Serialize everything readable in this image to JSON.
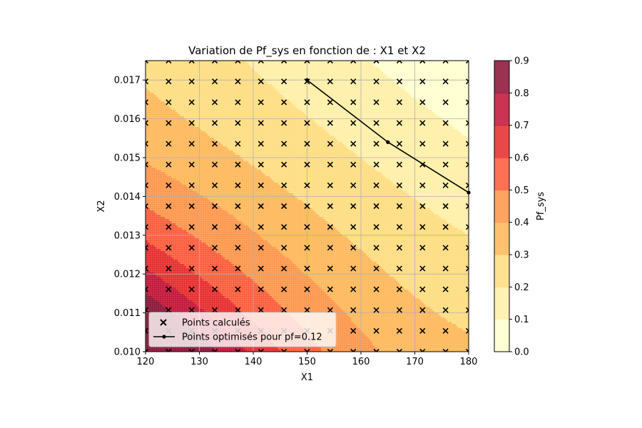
{
  "chart_data": {
    "type": "contour",
    "title": "Variation de Pf_sys en fonction de : X1 et X2",
    "xlabel": "X1",
    "ylabel": "X2",
    "xlim": [
      120,
      180
    ],
    "ylim": [
      0.01,
      0.0175
    ],
    "x_ticks": [
      "120",
      "130",
      "140",
      "150",
      "160",
      "170",
      "180"
    ],
    "y_ticks": [
      "0.010",
      "0.011",
      "0.012",
      "0.013",
      "0.014",
      "0.015",
      "0.016",
      "0.017"
    ],
    "grid": true,
    "colorbar": {
      "label": "Pf_sys",
      "levels": [
        0.0,
        0.1,
        0.2,
        0.3,
        0.4,
        0.5,
        0.6,
        0.7,
        0.8,
        0.9
      ],
      "tick_labels": [
        "0.0",
        "0.1",
        "0.2",
        "0.3",
        "0.4",
        "0.5",
        "0.6",
        "0.7",
        "0.8",
        "0.9"
      ],
      "colors": [
        "#ffffcc",
        "#ffeda0",
        "#fed976",
        "#feb24c",
        "#fd8d3c",
        "#fc4e2a",
        "#e31a1c",
        "#bd0026",
        "#800026"
      ]
    },
    "series": [
      {
        "name": "Points calculés",
        "marker": "X",
        "x_range": [
          120,
          180
        ],
        "y_range": [
          0.01,
          0.0175
        ],
        "nx": 15,
        "ny": 15
      },
      {
        "name": "Points optimisés pour pf=0.12",
        "marker": ".",
        "x": [
          150,
          165,
          180
        ],
        "y": [
          0.017,
          0.0154,
          0.0141
        ]
      }
    ],
    "legend_position": "lower-left"
  }
}
